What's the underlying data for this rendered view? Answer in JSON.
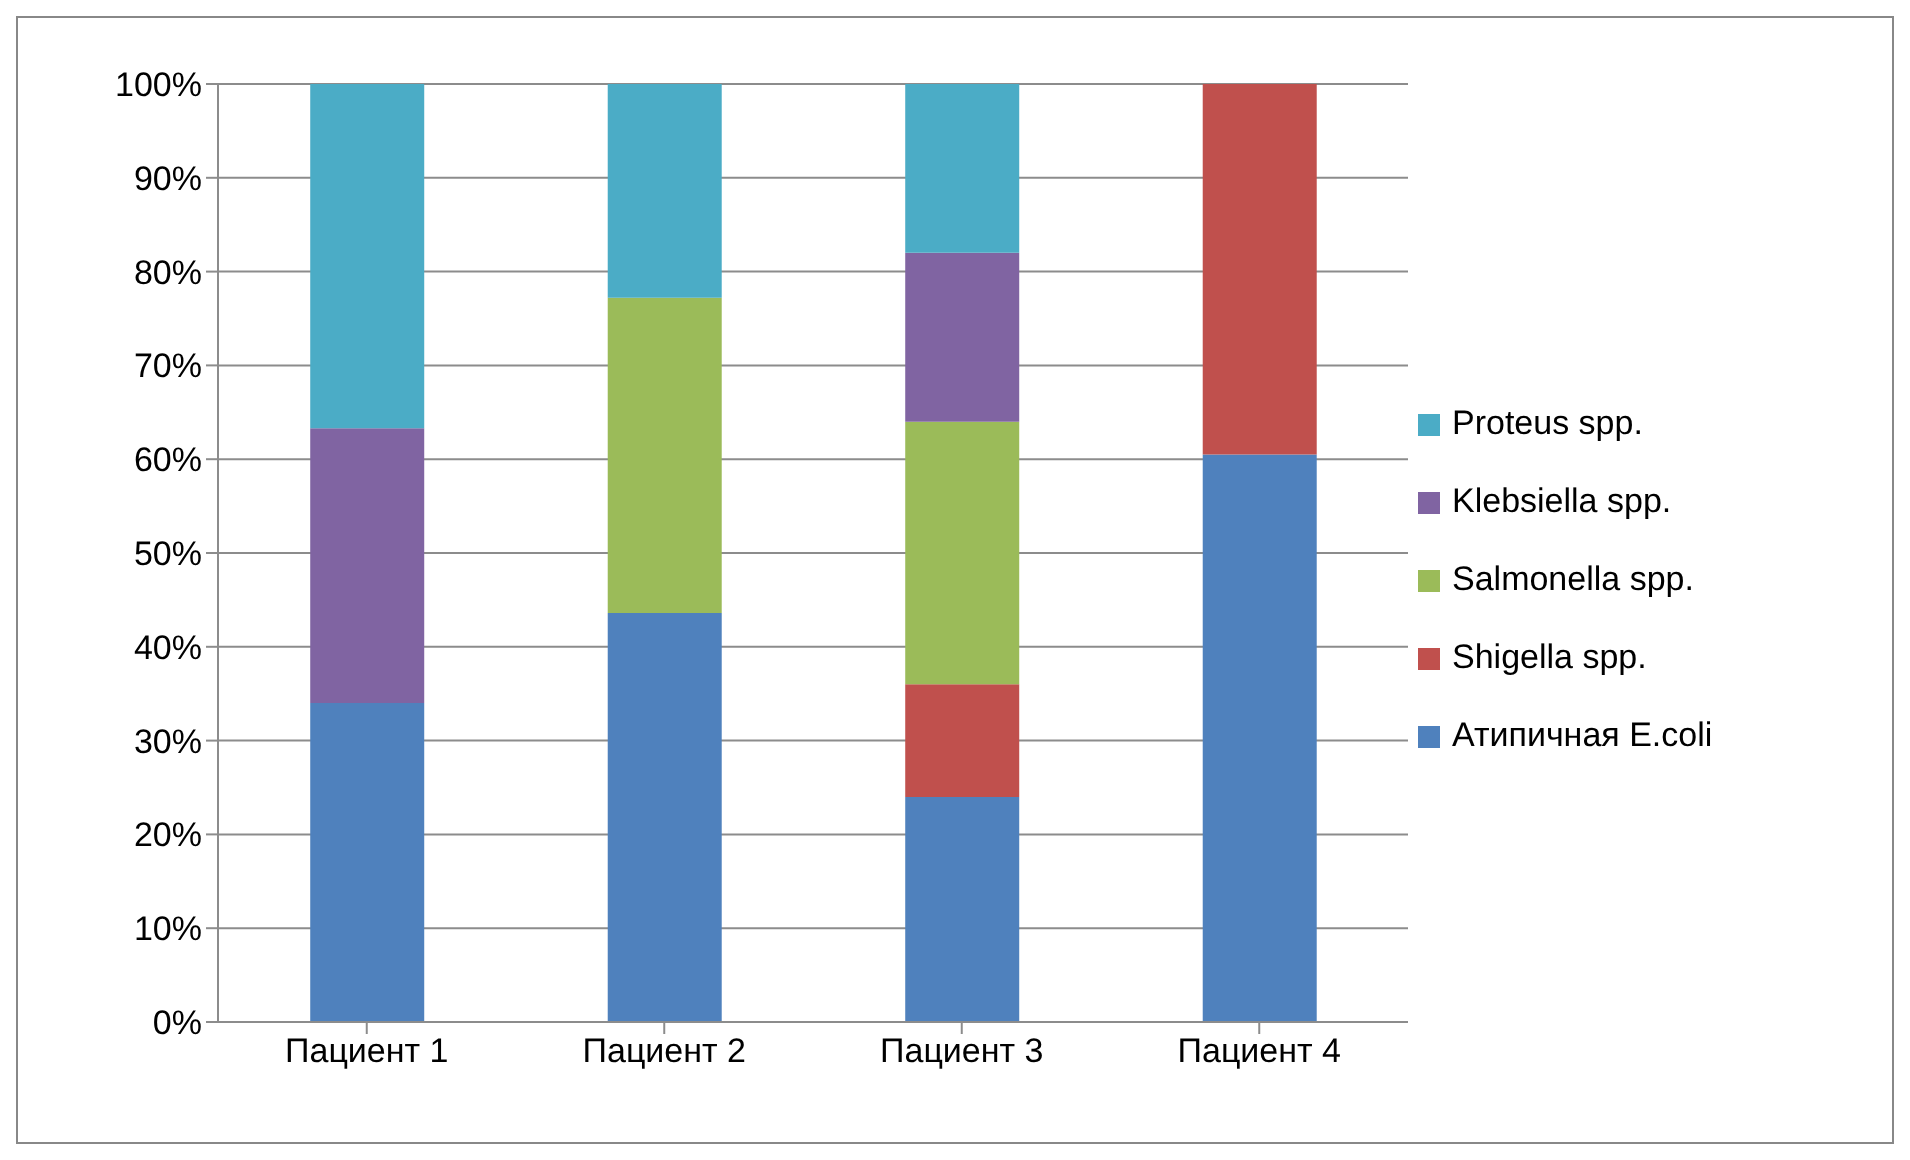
{
  "chart_data": {
    "type": "bar",
    "stacked": true,
    "categories": [
      "Пациент 1",
      "Пациент 2",
      "Пациент 3",
      "Пациент 4"
    ],
    "series": [
      {
        "name": "Атипичная E.coli",
        "color": "#4f81bd",
        "values": [
          34,
          43.6,
          24,
          60.5
        ]
      },
      {
        "name": "Shigella spp.",
        "color": "#c0504d",
        "values": [
          null,
          null,
          12,
          39.5
        ]
      },
      {
        "name": "Salmonella spp.",
        "color": "#9bbb59",
        "values": [
          null,
          33.6,
          28,
          null
        ]
      },
      {
        "name": "Klebsiella spp.",
        "color": "#8064a2",
        "values": [
          29.3,
          null,
          18,
          null
        ]
      },
      {
        "name": "Proteus spp.",
        "color": "#4bacc6",
        "values": [
          36.7,
          22.8,
          18,
          null
        ]
      }
    ],
    "ylim": [
      0,
      100
    ],
    "yticks": [
      {
        "value": 0,
        "label": "0%"
      },
      {
        "value": 10,
        "label": "10%"
      },
      {
        "value": 20,
        "label": "20%"
      },
      {
        "value": 30,
        "label": "30%"
      },
      {
        "value": 40,
        "label": "40%"
      },
      {
        "value": 50,
        "label": "50%"
      },
      {
        "value": 60,
        "label": "60%"
      },
      {
        "value": 70,
        "label": "70%"
      },
      {
        "value": 80,
        "label": "80%"
      },
      {
        "value": 90,
        "label": "90%"
      },
      {
        "value": 100,
        "label": "100%"
      }
    ],
    "grid": "y",
    "legend": "right"
  }
}
